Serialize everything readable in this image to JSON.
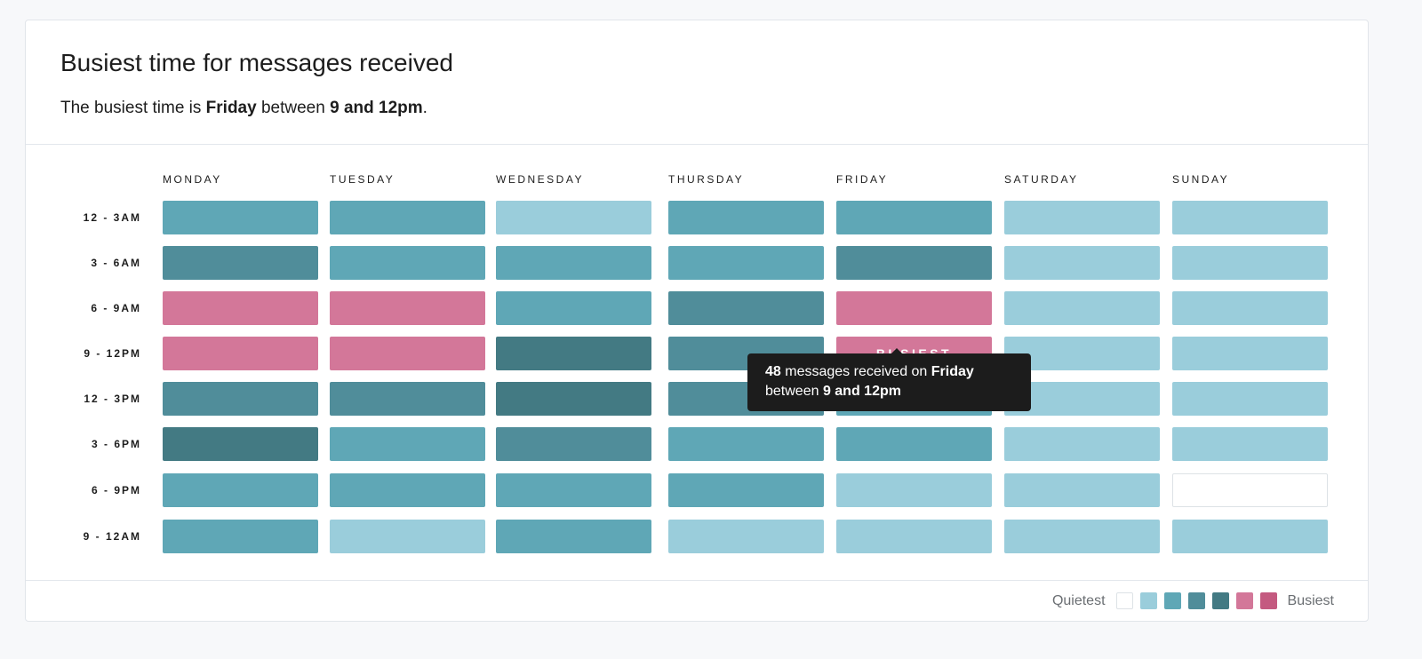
{
  "header": {
    "title": "Busiest time for messages received",
    "subtitle_prefix": "The busiest time is ",
    "subtitle_day": "Friday",
    "subtitle_mid": " between ",
    "subtitle_time": "9 and 12pm",
    "subtitle_suffix": "."
  },
  "colors": {
    "levels": [
      "#ffffff",
      "#9acddb",
      "#5fa7b6",
      "#508d9a",
      "#437a83",
      "#d37799",
      "#c45a80"
    ],
    "empty_border": "#dde2e6"
  },
  "chart_data": {
    "type": "heatmap",
    "x_categories": [
      "MONDAY",
      "TUESDAY",
      "WEDNESDAY",
      "THURSDAY",
      "FRIDAY",
      "SATURDAY",
      "SUNDAY"
    ],
    "y_categories": [
      "12 - 3AM",
      "3 - 6AM",
      "6 - 9AM",
      "9 - 12PM",
      "12 - 3PM",
      "3 - 6PM",
      "6 - 9PM",
      "9 - 12AM"
    ],
    "levels": [
      [
        2,
        2,
        1,
        2,
        2,
        1,
        1
      ],
      [
        3,
        2,
        2,
        2,
        3,
        1,
        1
      ],
      [
        5,
        5,
        2,
        3,
        5,
        1,
        1
      ],
      [
        5,
        5,
        4,
        3,
        5,
        1,
        1
      ],
      [
        3,
        3,
        4,
        3,
        2,
        1,
        1
      ],
      [
        4,
        2,
        3,
        2,
        2,
        1,
        1
      ],
      [
        2,
        2,
        2,
        2,
        1,
        1,
        0
      ],
      [
        2,
        1,
        2,
        1,
        1,
        1,
        1
      ]
    ],
    "busiest_cell": {
      "day": "FRIDAY",
      "slot": "9 - 12PM",
      "label": "BUSIEST"
    }
  },
  "tooltip": {
    "count": "48",
    "text1": " messages received on ",
    "day": "Friday",
    "text2": "between ",
    "time": "9 and 12pm"
  },
  "legend": {
    "low": "Quietest",
    "high": "Busiest"
  }
}
